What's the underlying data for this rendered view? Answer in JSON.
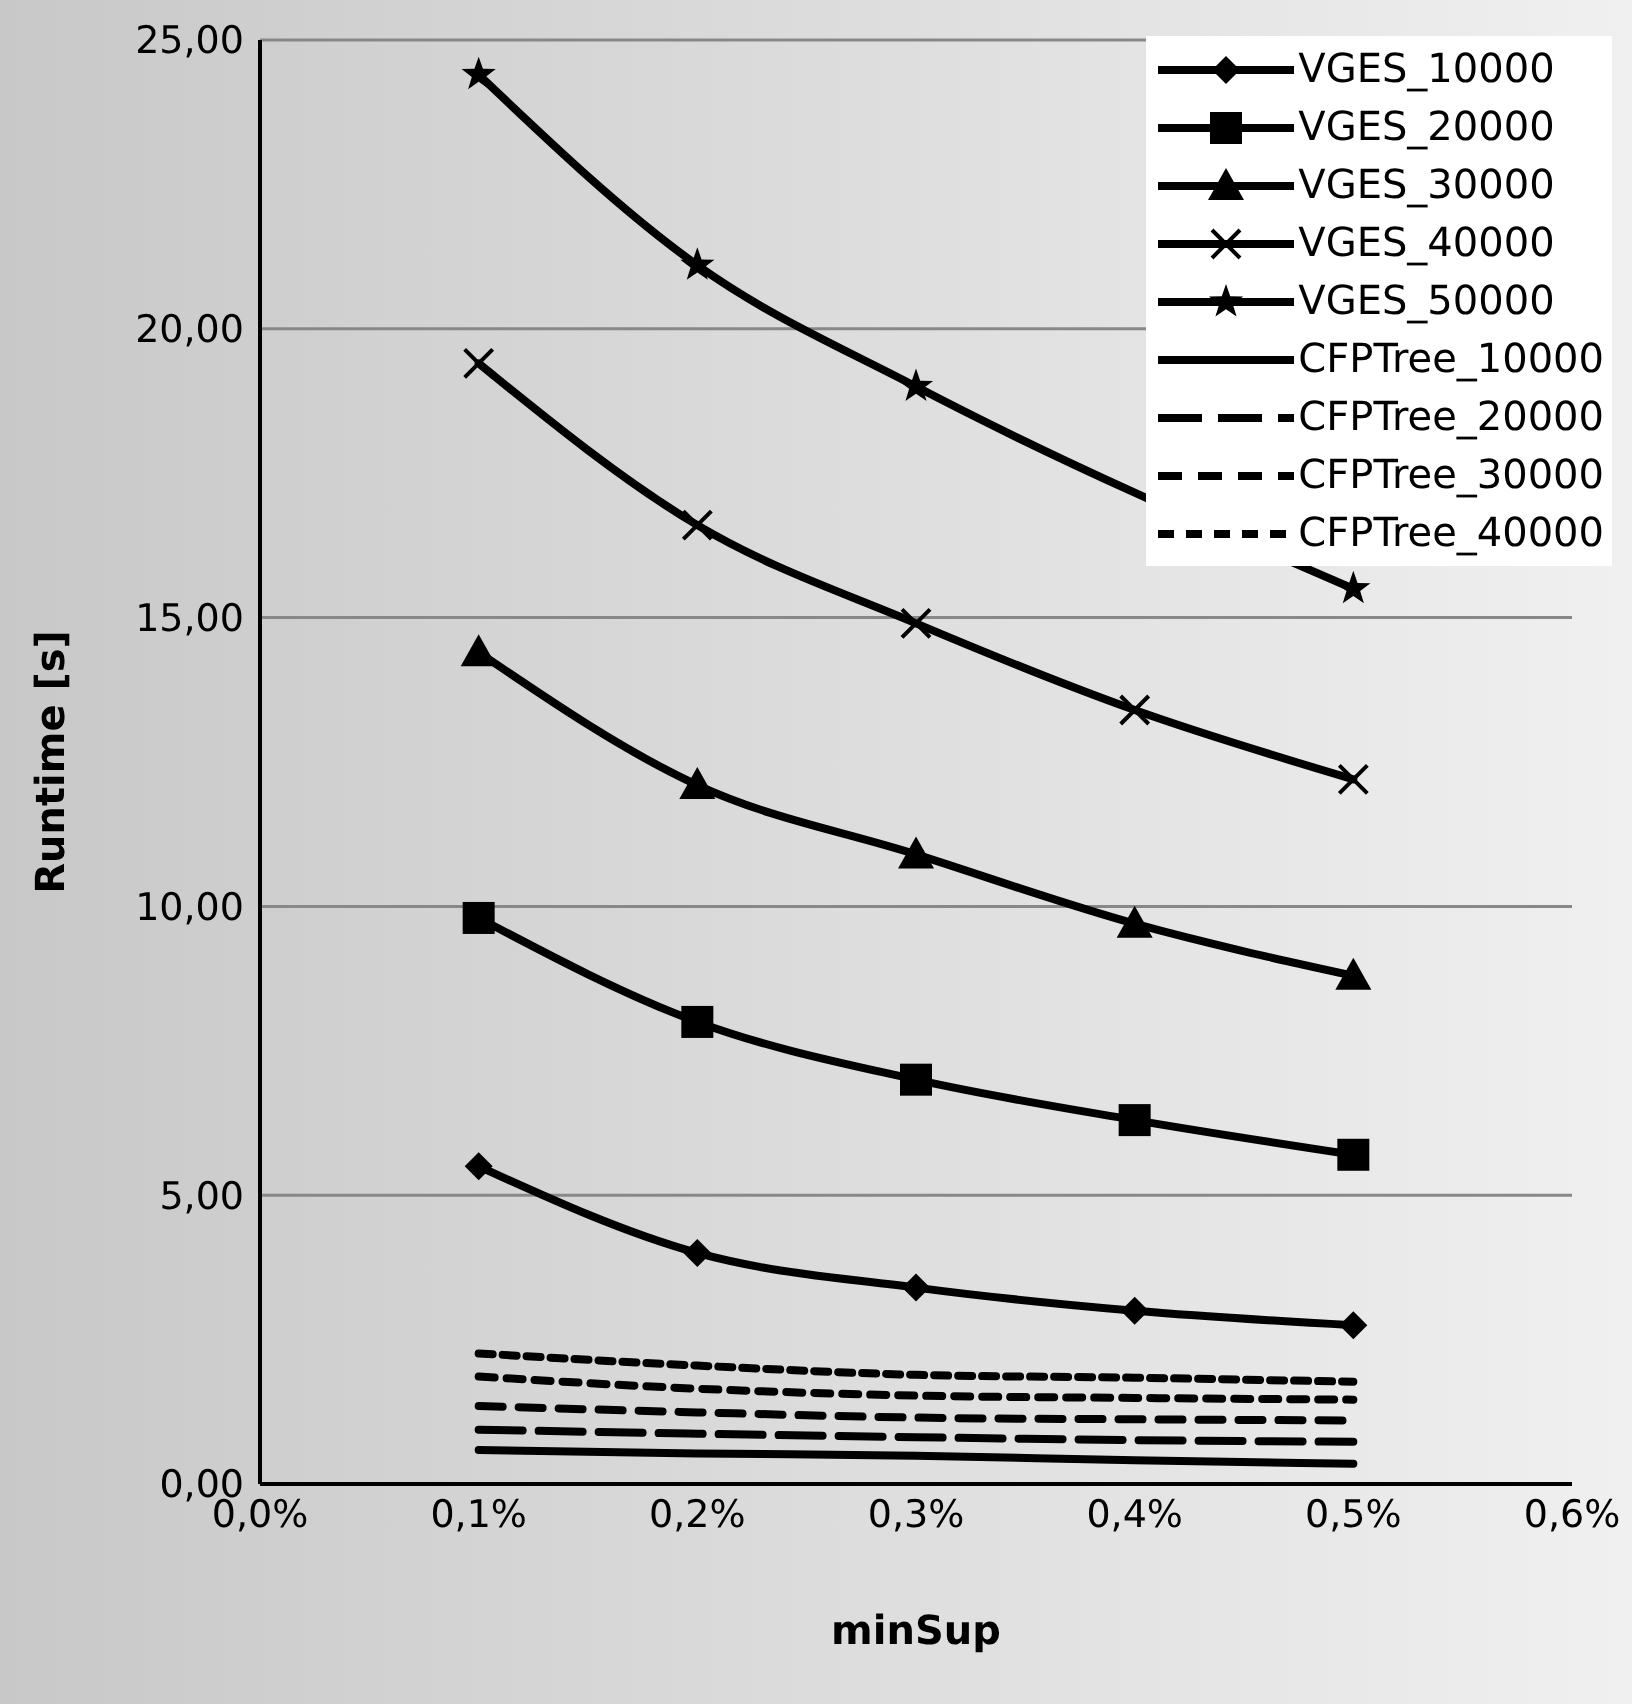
{
  "chart_data": {
    "type": "line",
    "xlabel": "minSup",
    "ylabel": "Runtime [s]",
    "x": [
      0.1,
      0.2,
      0.3,
      0.4,
      0.5
    ],
    "xlim": [
      0,
      0.6
    ],
    "xticks": [
      {
        "value": 0,
        "label": "0,0%"
      },
      {
        "value": 0.1,
        "label": "0,1%"
      },
      {
        "value": 0.2,
        "label": "0,2%"
      },
      {
        "value": 0.3,
        "label": "0,3%"
      },
      {
        "value": 0.4,
        "label": "0,4%"
      },
      {
        "value": 0.5,
        "label": "0,5%"
      },
      {
        "value": 0.6,
        "label": "0,6%"
      }
    ],
    "ylim": [
      0,
      25
    ],
    "yticks": [
      {
        "value": 0,
        "label": "0,00"
      },
      {
        "value": 5,
        "label": "5,00"
      },
      {
        "value": 10,
        "label": "10,00"
      },
      {
        "value": 15,
        "label": "15,00"
      },
      {
        "value": 20,
        "label": "20,00"
      },
      {
        "value": 25,
        "label": "25,00"
      }
    ],
    "grid": "y",
    "legend": "top right",
    "series": [
      {
        "name": "VGES_10000",
        "color": "#000000",
        "marker": "diamond",
        "line_style": "solid",
        "values": [
          5.5,
          4.0,
          3.4,
          3.0,
          2.75
        ]
      },
      {
        "name": "VGES_20000",
        "color": "#000000",
        "marker": "square",
        "line_style": "solid",
        "values": [
          9.8,
          8.0,
          7.0,
          6.3,
          5.7
        ]
      },
      {
        "name": "VGES_30000",
        "color": "#000000",
        "marker": "triangle",
        "line_style": "solid",
        "values": [
          14.4,
          12.1,
          10.9,
          9.7,
          8.8
        ]
      },
      {
        "name": "VGES_40000",
        "color": "#000000",
        "marker": "cross",
        "line_style": "solid",
        "values": [
          19.4,
          16.6,
          14.9,
          13.4,
          12.2
        ]
      },
      {
        "name": "VGES_50000",
        "color": "#000000",
        "marker": "star",
        "line_style": "solid",
        "values": [
          24.4,
          21.1,
          19.0,
          null,
          15.5
        ]
      },
      {
        "name": "CFPTree_10000",
        "color": "#000000",
        "marker": "none",
        "line_style": "solid",
        "values": [
          0.59,
          0.53,
          0.49,
          0.41,
          0.35
        ]
      },
      {
        "name": "CFPTree_20000",
        "color": "#000000",
        "marker": "none",
        "line_style": "dashed",
        "values": [
          0.94,
          0.87,
          0.81,
          0.76,
          0.73
        ]
      },
      {
        "name": "CFPTree_30000",
        "color": "#000000",
        "marker": "none",
        "line_style": "dashed",
        "values": [
          1.35,
          1.24,
          1.15,
          1.12,
          1.1
        ]
      },
      {
        "name": "CFPTree_40000",
        "color": "#000000",
        "marker": "none",
        "line_style": "dashed",
        "values": [
          1.86,
          1.65,
          1.53,
          1.49,
          1.46
        ]
      },
      {
        "color": "#000000",
        "marker": "none",
        "line_style": "dashed",
        "values": [
          2.26,
          2.05,
          1.89,
          1.84,
          1.77
        ]
      }
    ]
  }
}
